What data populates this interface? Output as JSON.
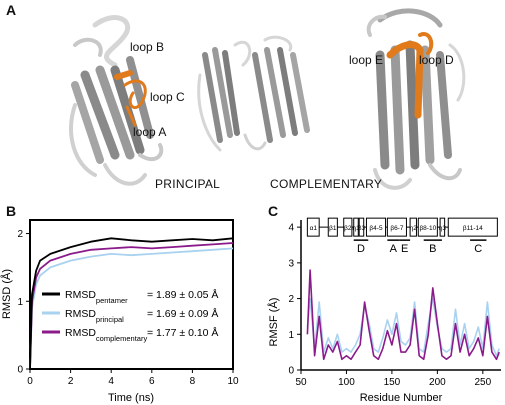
{
  "figure": {
    "panels": {
      "a": "A",
      "b": "B",
      "c": "C"
    }
  },
  "panel_a": {
    "loops": {
      "loop_a": "loop A",
      "loop_b": "loop B",
      "loop_c": "loop C",
      "loop_d": "loop D",
      "loop_e": "loop E"
    },
    "principal_caption": "PRINCIPAL",
    "complementary_caption": "COMPLEMENTARY",
    "colors": {
      "structure": "#8a8a8a",
      "structure_light": "#d6d6d6",
      "loop": "#e07a1a"
    }
  },
  "chart_data": [
    {
      "type": "line",
      "panel": "B",
      "xlabel": "Time (ns)",
      "ylabel": "RMSD (Å)",
      "xlim": [
        0,
        10
      ],
      "ylim": [
        0,
        2.2
      ],
      "x_ticks": [
        "0",
        "2",
        "4",
        "6",
        "8",
        "10"
      ],
      "y_ticks": [
        "0",
        "1",
        "2"
      ],
      "series": [
        {
          "key": "pentamer",
          "base": "RMSD",
          "sub": "pentamer",
          "value": "= 1.89 ± 0.05 Å",
          "color": "#000000",
          "x": [
            0,
            0.1,
            0.3,
            0.5,
            1,
            2,
            3,
            4,
            5,
            6,
            7,
            8,
            9,
            10
          ],
          "y": [
            0,
            1.1,
            1.45,
            1.6,
            1.7,
            1.8,
            1.88,
            1.93,
            1.9,
            1.88,
            1.9,
            1.92,
            1.9,
            1.93
          ]
        },
        {
          "key": "principal",
          "base": "RMSD",
          "sub": "principal",
          "value": "= 1.69 ± 0.09 Å",
          "color": "#a8d2f0",
          "x": [
            0,
            0.1,
            0.3,
            0.5,
            1,
            2,
            3,
            4,
            5,
            6,
            7,
            8,
            9,
            10
          ],
          "y": [
            0,
            0.9,
            1.25,
            1.38,
            1.5,
            1.6,
            1.66,
            1.7,
            1.68,
            1.7,
            1.72,
            1.74,
            1.76,
            1.78
          ]
        },
        {
          "key": "complementary",
          "base": "RMSD",
          "sub": "complementary",
          "value": "= 1.77 ± 0.10 Å",
          "color": "#8b1a8b",
          "x": [
            0,
            0.1,
            0.3,
            0.5,
            1,
            2,
            3,
            4,
            5,
            6,
            7,
            8,
            9,
            10
          ],
          "y": [
            0,
            1.0,
            1.35,
            1.48,
            1.6,
            1.7,
            1.76,
            1.78,
            1.8,
            1.78,
            1.8,
            1.82,
            1.84,
            1.86
          ]
        }
      ]
    },
    {
      "type": "line",
      "panel": "C",
      "xlabel": "Residue Number",
      "ylabel": "RMSF (Å)",
      "xlim": [
        50,
        270
      ],
      "ylim": [
        0,
        4.2
      ],
      "x_ticks": [
        "50",
        "100",
        "150",
        "200",
        "250"
      ],
      "y_ticks": [
        "0",
        "1",
        "2",
        "3",
        "4"
      ],
      "series": [
        {
          "key": "principal",
          "color": "#a8d2f0",
          "x": [
            57,
            60,
            65,
            70,
            75,
            80,
            85,
            90,
            95,
            100,
            105,
            110,
            115,
            120,
            125,
            130,
            135,
            140,
            145,
            150,
            155,
            160,
            165,
            170,
            175,
            180,
            185,
            190,
            195,
            200,
            205,
            210,
            215,
            220,
            225,
            230,
            235,
            240,
            245,
            250,
            255,
            260,
            265,
            268
          ],
          "y": [
            1.2,
            2.0,
            0.6,
            1.9,
            0.5,
            0.9,
            0.6,
            1.0,
            0.5,
            0.6,
            0.5,
            0.7,
            1.0,
            1.8,
            1.3,
            0.6,
            0.5,
            0.9,
            1.4,
            1.0,
            1.6,
            0.8,
            0.7,
            0.9,
            1.9,
            0.6,
            0.5,
            1.3,
            2.0,
            1.2,
            0.6,
            0.5,
            0.6,
            1.7,
            0.7,
            1.3,
            0.6,
            0.8,
            1.2,
            0.6,
            1.9,
            0.7,
            0.4,
            0.6
          ]
        },
        {
          "key": "complementary",
          "color": "#8b1a8b",
          "x": [
            57,
            60,
            65,
            70,
            75,
            80,
            85,
            90,
            95,
            100,
            105,
            110,
            115,
            120,
            125,
            130,
            135,
            140,
            145,
            150,
            155,
            160,
            165,
            170,
            175,
            180,
            185,
            190,
            195,
            200,
            205,
            210,
            215,
            220,
            225,
            230,
            235,
            240,
            245,
            250,
            255,
            260,
            265,
            268
          ],
          "y": [
            1.0,
            2.8,
            0.4,
            1.5,
            0.3,
            0.7,
            0.5,
            0.8,
            0.3,
            0.4,
            0.3,
            0.5,
            0.7,
            1.9,
            1.1,
            0.4,
            0.3,
            0.6,
            1.1,
            0.7,
            1.3,
            0.5,
            0.5,
            0.7,
            1.7,
            0.4,
            0.3,
            1.0,
            2.3,
            1.3,
            0.4,
            0.3,
            0.4,
            1.3,
            0.5,
            1.0,
            0.4,
            0.6,
            0.9,
            0.4,
            1.5,
            0.5,
            0.3,
            0.5
          ]
        }
      ],
      "topology": {
        "elements": [
          "α1",
          "β1",
          "β2",
          "η1",
          "β3",
          "β4-5",
          "β6-7",
          "η2",
          "β8-10",
          "η3",
          "β11-14"
        ],
        "loops": [
          "D",
          "A",
          "E",
          "B",
          "C"
        ]
      }
    }
  ]
}
